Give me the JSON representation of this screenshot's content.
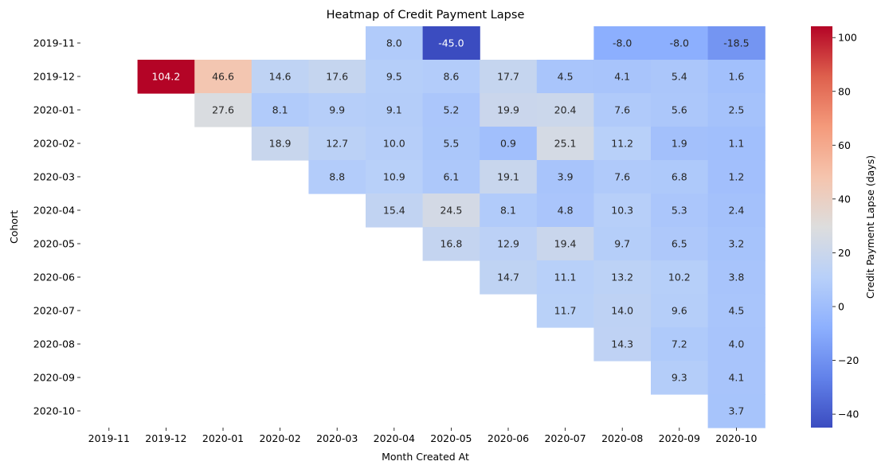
{
  "chart_data": {
    "type": "heatmap",
    "title": "Heatmap of Credit Payment Lapse",
    "xlabel": "Month Created At",
    "ylabel": "Cohort",
    "colorbar_label": "Credit Payment Lapse (days)",
    "colormap": "coolwarm",
    "vmin": -45.0,
    "vmax": 104.2,
    "colorbar_ticks": [
      "100",
      "80",
      "60",
      "40",
      "20",
      "0",
      "−20",
      "−40"
    ],
    "colorbar_tick_values": [
      100,
      80,
      60,
      40,
      20,
      0,
      -20,
      -40
    ],
    "x_categories": [
      "2019-11",
      "2019-12",
      "2020-01",
      "2020-02",
      "2020-03",
      "2020-04",
      "2020-05",
      "2020-06",
      "2020-07",
      "2020-08",
      "2020-09",
      "2020-10"
    ],
    "y_categories": [
      "2019-11",
      "2019-12",
      "2020-01",
      "2020-02",
      "2020-03",
      "2020-04",
      "2020-05",
      "2020-06",
      "2020-07",
      "2020-08",
      "2020-09",
      "2020-10"
    ],
    "values": [
      [
        null,
        null,
        null,
        null,
        null,
        8.0,
        -45.0,
        null,
        null,
        -8.0,
        -8.0,
        -18.5
      ],
      [
        null,
        104.2,
        46.6,
        14.6,
        17.6,
        9.5,
        8.6,
        17.7,
        4.5,
        4.1,
        5.4,
        1.6
      ],
      [
        null,
        null,
        27.6,
        8.1,
        9.9,
        9.1,
        5.2,
        19.9,
        20.4,
        7.6,
        5.6,
        2.5
      ],
      [
        null,
        null,
        null,
        18.9,
        12.7,
        10.0,
        5.5,
        0.9,
        25.1,
        11.2,
        1.9,
        1.1
      ],
      [
        null,
        null,
        null,
        null,
        8.8,
        10.9,
        6.1,
        19.1,
        3.9,
        7.6,
        6.8,
        1.2
      ],
      [
        null,
        null,
        null,
        null,
        null,
        15.4,
        24.5,
        8.1,
        4.8,
        10.3,
        5.3,
        2.4
      ],
      [
        null,
        null,
        null,
        null,
        null,
        null,
        16.8,
        12.9,
        19.4,
        9.7,
        6.5,
        3.2
      ],
      [
        null,
        null,
        null,
        null,
        null,
        null,
        null,
        14.7,
        11.1,
        13.2,
        10.2,
        3.8
      ],
      [
        null,
        null,
        null,
        null,
        null,
        null,
        null,
        null,
        11.7,
        14.0,
        9.6,
        4.5
      ],
      [
        null,
        null,
        null,
        null,
        null,
        null,
        null,
        null,
        null,
        14.3,
        7.2,
        4.0
      ],
      [
        null,
        null,
        null,
        null,
        null,
        null,
        null,
        null,
        null,
        null,
        9.3,
        4.1
      ],
      [
        null,
        null,
        null,
        null,
        null,
        null,
        null,
        null,
        null,
        null,
        null,
        3.7
      ]
    ]
  }
}
